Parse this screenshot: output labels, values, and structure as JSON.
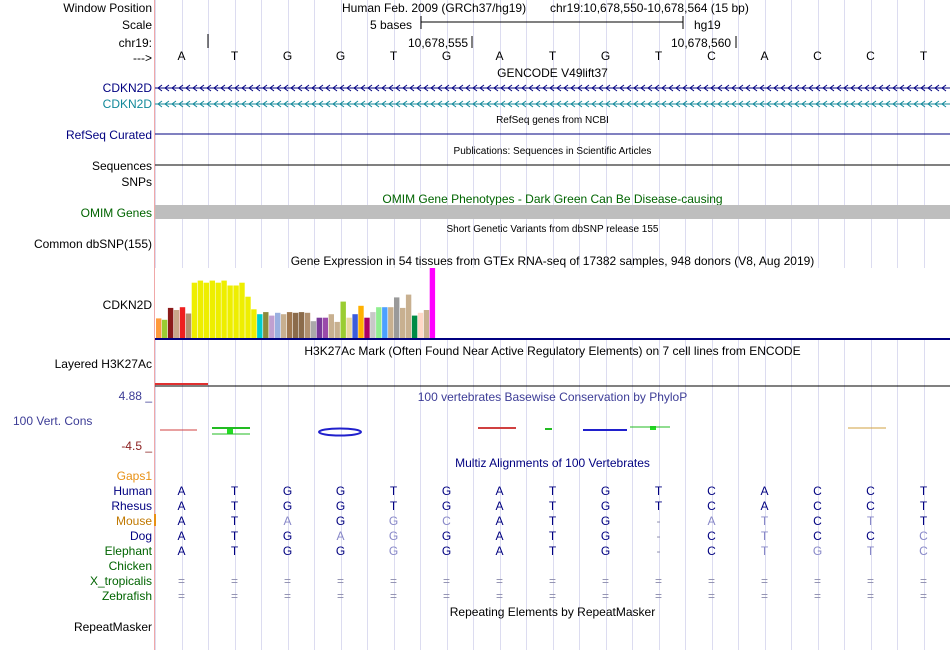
{
  "header": {
    "window_position_label": "Window Position",
    "assembly": "Human Feb. 2009 (GRCh37/hg19)",
    "position": "chr19:10,678,550-10,678,564 (15 bp)",
    "scale_label": "Scale",
    "scale_text": "5 bases",
    "scale_db": "hg19",
    "chr_label": "chr19:",
    "coord_1": "10,678,555",
    "coord_2": "10,678,560",
    "arrow_label": "--->"
  },
  "bases": [
    "A",
    "T",
    "G",
    "G",
    "T",
    "G",
    "A",
    "T",
    "G",
    "T",
    "C",
    "A",
    "C",
    "C",
    "T"
  ],
  "tracks": {
    "gencode_title": "GENCODE V49lift37",
    "gene1": "CDKN2D",
    "gene2": "CDKN2D",
    "refseq_label": "RefSeq Curated",
    "refseq_title": "RefSeq genes from NCBI",
    "pubs_title": "Publications: Sequences in Scientific Articles",
    "sequences_label": "Sequences",
    "snps_label": "SNPs",
    "omim_title": "OMIM Gene Phenotypes - Dark Green Can Be Disease-causing",
    "omim_label": "OMIM Genes",
    "dbsnp_title": "Short Genetic Variants from dbSNP release 155",
    "dbsnp_label": "Common dbSNP(155)",
    "gtex_title": "Gene Expression in 54 tissues from GTEx RNA-seq of 17382 samples, 948 donors (V8, Aug 2019)",
    "gtex_label": "CDKN2D",
    "h3k_title": "H3K27Ac Mark (Often Found Near Active Regulatory Elements) on 7 cell lines from ENCODE",
    "h3k_label": "Layered H3K27Ac",
    "phylop_max": "4.88 _",
    "phylop_title": "100 vertebrates Basewise Conservation by PhyloP",
    "phylop_label": "100 Vert. Cons",
    "phylop_min": "-4.5 _",
    "gaps_label": "Gaps1",
    "multiz_title": "Multiz Alignments of 100 Vertebrates",
    "repeat_title": "Repeating Elements by RepeatMasker",
    "repeat_label": "RepeatMasker"
  },
  "alignment": [
    {
      "species": "Human",
      "color": "#000080",
      "bases": [
        "A",
        "T",
        "G",
        "G",
        "T",
        "G",
        "A",
        "T",
        "G",
        "T",
        "C",
        "A",
        "C",
        "C",
        "T"
      ]
    },
    {
      "species": "Rhesus",
      "color": "#000080",
      "bases": [
        "A",
        "T",
        "G",
        "G",
        "T",
        "G",
        "A",
        "T",
        "G",
        "T",
        "C",
        "A",
        "C",
        "C",
        "T"
      ]
    },
    {
      "species": "Mouse",
      "color": "#c07800",
      "bases": [
        "A",
        "T",
        "A",
        "G",
        "G",
        "C",
        "A",
        "T",
        "G",
        "-",
        "A",
        "T",
        "C",
        "T",
        "T"
      ]
    },
    {
      "species": "Dog",
      "color": "#000080",
      "bases": [
        "A",
        "T",
        "G",
        "A",
        "G",
        "G",
        "A",
        "T",
        "G",
        "-",
        "C",
        "T",
        "C",
        "C",
        "C"
      ]
    },
    {
      "species": "Elephant",
      "color": "#006400",
      "bases": [
        "A",
        "T",
        "G",
        "G",
        "G",
        "G",
        "A",
        "T",
        "G",
        "-",
        "C",
        "T",
        "G",
        "T",
        "C"
      ]
    },
    {
      "species": "Chicken",
      "color": "#006400",
      "bases": [
        "",
        "",
        "",
        "",
        "",
        "",
        "",
        "",
        "",
        "",
        "",
        "",
        "",
        "",
        ""
      ]
    },
    {
      "species": "X_tropicalis",
      "color": "#006400",
      "bases": [
        "=",
        "=",
        "=",
        "=",
        "=",
        "=",
        "=",
        "=",
        "=",
        "=",
        "=",
        "=",
        "=",
        "=",
        "="
      ]
    },
    {
      "species": "Zebrafish",
      "color": "#006400",
      "bases": [
        "=",
        "=",
        "=",
        "=",
        "=",
        "=",
        "=",
        "=",
        "=",
        "=",
        "=",
        "=",
        "=",
        "=",
        "="
      ]
    }
  ],
  "colors": {
    "navy": "#000080",
    "teal": "#118899",
    "omim_gray": "#bebebe",
    "omim_text": "#006400",
    "phylop": "#3c3c96",
    "gaps": "#e89014"
  },
  "gtex_bars": [
    {
      "value": 0.28,
      "color": "#ff9a3c"
    },
    {
      "value": 0.26,
      "color": "#9acd32"
    },
    {
      "value": 0.43,
      "color": "#8b1a1a"
    },
    {
      "value": 0.4,
      "color": "#c9a78a"
    },
    {
      "value": 0.44,
      "color": "#ee2020"
    },
    {
      "value": 0.35,
      "color": "#b09070"
    },
    {
      "value": 0.79,
      "color": "#eeee00"
    },
    {
      "value": 0.82,
      "color": "#eeee00"
    },
    {
      "value": 0.79,
      "color": "#eeee00"
    },
    {
      "value": 0.82,
      "color": "#eeee00"
    },
    {
      "value": 0.79,
      "color": "#eeee00"
    },
    {
      "value": 0.82,
      "color": "#eeee00"
    },
    {
      "value": 0.75,
      "color": "#eeee00"
    },
    {
      "value": 0.75,
      "color": "#eeee00"
    },
    {
      "value": 0.79,
      "color": "#eeee00"
    },
    {
      "value": 0.59,
      "color": "#eeee00"
    },
    {
      "value": 0.41,
      "color": "#eeee00"
    },
    {
      "value": 0.34,
      "color": "#00cdcd"
    },
    {
      "value": 0.37,
      "color": "#8b8b3c"
    },
    {
      "value": 0.32,
      "color": "#c0a0d0"
    },
    {
      "value": 0.36,
      "color": "#9ab0e0"
    },
    {
      "value": 0.34,
      "color": "#c8b090"
    },
    {
      "value": 0.37,
      "color": "#a07850"
    },
    {
      "value": 0.36,
      "color": "#8b6b4b"
    },
    {
      "value": 0.37,
      "color": "#8b6b4b"
    },
    {
      "value": 0.36,
      "color": "#b09070"
    },
    {
      "value": 0.24,
      "color": "#aaaaaa"
    },
    {
      "value": 0.29,
      "color": "#7a3a9a"
    },
    {
      "value": 0.29,
      "color": "#9a4aaa"
    },
    {
      "value": 0.34,
      "color": "#c8b090"
    },
    {
      "value": 0.23,
      "color": "#c8b090"
    },
    {
      "value": 0.52,
      "color": "#9acd32"
    },
    {
      "value": 0.29,
      "color": "#e8d8a0"
    },
    {
      "value": 0.34,
      "color": "#3c5cdc"
    },
    {
      "value": 0.46,
      "color": "#ffb000"
    },
    {
      "value": 0.29,
      "color": "#aa0066"
    },
    {
      "value": 0.37,
      "color": "#c8c8c8"
    },
    {
      "value": 0.44,
      "color": "#90ee90"
    },
    {
      "value": 0.44,
      "color": "#4ca0ff"
    },
    {
      "value": 0.44,
      "color": "#c8b090"
    },
    {
      "value": 0.58,
      "color": "#9a9a9a"
    },
    {
      "value": 0.43,
      "color": "#c8b090"
    },
    {
      "value": 0.62,
      "color": "#c8b090"
    },
    {
      "value": 0.32,
      "color": "#008b45"
    },
    {
      "value": 0.36,
      "color": "#ffd8c8"
    },
    {
      "value": 0.4,
      "color": "#c8b090"
    },
    {
      "value": 1.0,
      "color": "#ff00ff"
    }
  ]
}
